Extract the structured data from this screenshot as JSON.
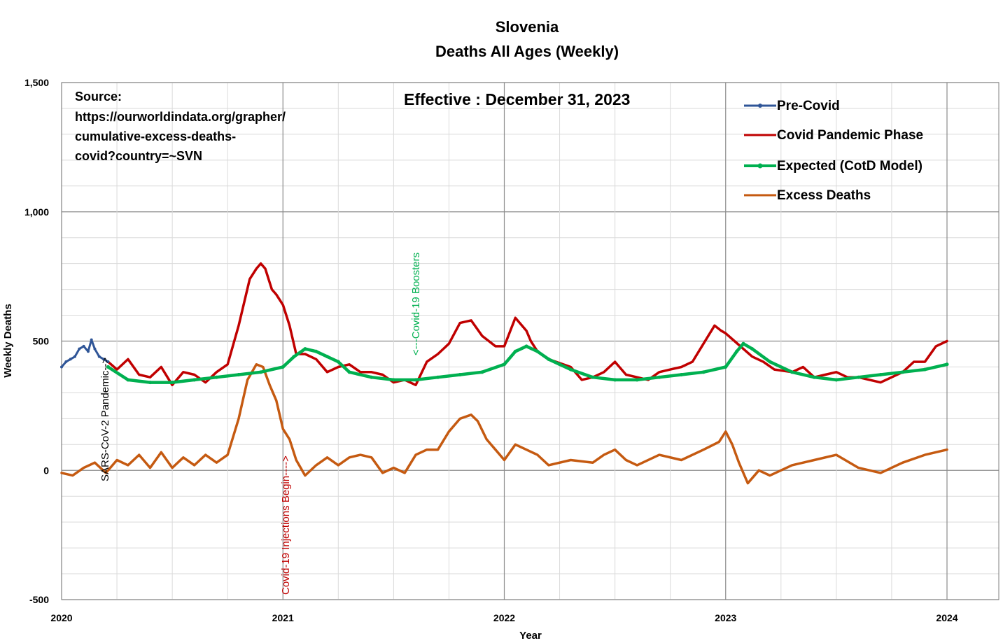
{
  "chart_data": {
    "type": "line",
    "title": "Slovenia",
    "subtitle": "Deaths All Ages (Weekly)",
    "xlabel": "Year",
    "ylabel": "Weekly Deaths",
    "xlim": [
      2020,
      2024.25
    ],
    "ylim": [
      -500,
      1500
    ],
    "x_ticks": [
      "2020",
      "2021",
      "2022",
      "2023",
      "2024"
    ],
    "y_ticks": [
      "-500",
      "0",
      "500",
      "1,000",
      "1,500"
    ],
    "grid": true,
    "legend_position": "top-right",
    "series": [
      {
        "name": "Pre-Covid",
        "color": "#2f5597",
        "x": [
          2020.0,
          2020.02,
          2020.04,
          2020.06,
          2020.08,
          2020.1,
          2020.12,
          2020.135,
          2020.15,
          2020.17,
          2020.19,
          2020.21
        ],
        "y": [
          400,
          420,
          430,
          440,
          470,
          480,
          460,
          505,
          470,
          440,
          430,
          420
        ]
      },
      {
        "name": "Covid Pandemic Phase",
        "color": "#c00000",
        "x": [
          2020.21,
          2020.25,
          2020.3,
          2020.35,
          2020.4,
          2020.45,
          2020.5,
          2020.55,
          2020.6,
          2020.65,
          2020.7,
          2020.75,
          2020.8,
          2020.85,
          2020.88,
          2020.9,
          2020.92,
          2020.95,
          2020.97,
          2021.0,
          2021.03,
          2021.06,
          2021.1,
          2021.15,
          2021.2,
          2021.25,
          2021.3,
          2021.35,
          2021.4,
          2021.45,
          2021.5,
          2021.55,
          2021.6,
          2021.65,
          2021.7,
          2021.75,
          2021.8,
          2021.85,
          2021.9,
          2021.93,
          2021.96,
          2022.0,
          2022.05,
          2022.1,
          2022.12,
          2022.15,
          2022.2,
          2022.3,
          2022.35,
          2022.4,
          2022.45,
          2022.5,
          2022.55,
          2022.6,
          2022.65,
          2022.7,
          2022.75,
          2022.8,
          2022.85,
          2022.9,
          2022.95,
          2022.98,
          2023.0,
          2023.04,
          2023.08,
          2023.12,
          2023.17,
          2023.22,
          2023.3,
          2023.35,
          2023.4,
          2023.45,
          2023.5,
          2023.55,
          2023.6,
          2023.65,
          2023.7,
          2023.75,
          2023.8,
          2023.85,
          2023.9,
          2023.95,
          2024.0
        ],
        "y": [
          420,
          390,
          430,
          370,
          360,
          400,
          330,
          380,
          370,
          340,
          380,
          410,
          560,
          740,
          780,
          800,
          780,
          700,
          680,
          640,
          560,
          450,
          450,
          430,
          380,
          400,
          410,
          380,
          380,
          370,
          340,
          350,
          330,
          420,
          450,
          490,
          570,
          580,
          520,
          500,
          480,
          480,
          590,
          540,
          500,
          460,
          430,
          400,
          350,
          360,
          380,
          420,
          370,
          360,
          350,
          380,
          390,
          400,
          420,
          490,
          560,
          540,
          530,
          500,
          470,
          440,
          420,
          390,
          380,
          400,
          360,
          370,
          380,
          360,
          360,
          350,
          340,
          360,
          380,
          420,
          420,
          480,
          500
        ]
      },
      {
        "name": "Expected (CotD Model)",
        "color": "#00b050",
        "x": [
          2020.21,
          2020.3,
          2020.4,
          2020.5,
          2020.6,
          2020.7,
          2020.8,
          2020.9,
          2021.0,
          2021.05,
          2021.1,
          2021.15,
          2021.2,
          2021.25,
          2021.3,
          2021.4,
          2021.5,
          2021.6,
          2021.7,
          2021.8,
          2021.9,
          2022.0,
          2022.05,
          2022.1,
          2022.15,
          2022.2,
          2022.25,
          2022.3,
          2022.4,
          2022.5,
          2022.6,
          2022.7,
          2022.8,
          2022.9,
          2023.0,
          2023.05,
          2023.08,
          2023.12,
          2023.2,
          2023.3,
          2023.4,
          2023.5,
          2023.6,
          2023.7,
          2023.8,
          2023.9,
          2024.0
        ],
        "y": [
          400,
          350,
          340,
          340,
          350,
          360,
          370,
          380,
          400,
          440,
          470,
          460,
          440,
          420,
          380,
          360,
          350,
          350,
          360,
          370,
          380,
          410,
          460,
          480,
          460,
          430,
          410,
          390,
          360,
          350,
          350,
          360,
          370,
          380,
          400,
          460,
          490,
          470,
          420,
          380,
          360,
          350,
          360,
          370,
          380,
          390,
          410
        ]
      },
      {
        "name": "Excess Deaths",
        "color": "#c55a11",
        "x": [
          2020.0,
          2020.05,
          2020.1,
          2020.15,
          2020.2,
          2020.25,
          2020.3,
          2020.35,
          2020.4,
          2020.45,
          2020.5,
          2020.55,
          2020.6,
          2020.65,
          2020.7,
          2020.75,
          2020.8,
          2020.84,
          2020.88,
          2020.91,
          2020.94,
          2020.97,
          2021.0,
          2021.03,
          2021.06,
          2021.1,
          2021.15,
          2021.2,
          2021.25,
          2021.3,
          2021.35,
          2021.4,
          2021.45,
          2021.5,
          2021.55,
          2021.6,
          2021.65,
          2021.7,
          2021.75,
          2021.8,
          2021.85,
          2021.88,
          2021.92,
          2021.96,
          2022.0,
          2022.05,
          2022.1,
          2022.15,
          2022.2,
          2022.3,
          2022.4,
          2022.45,
          2022.5,
          2022.55,
          2022.6,
          2022.7,
          2022.8,
          2022.9,
          2022.97,
          2023.0,
          2023.03,
          2023.06,
          2023.1,
          2023.15,
          2023.2,
          2023.3,
          2023.4,
          2023.5,
          2023.6,
          2023.7,
          2023.8,
          2023.9,
          2024.0
        ],
        "y": [
          -10,
          -20,
          10,
          30,
          -10,
          40,
          20,
          60,
          10,
          70,
          10,
          50,
          20,
          60,
          30,
          60,
          200,
          350,
          410,
          400,
          330,
          270,
          160,
          120,
          40,
          -20,
          20,
          50,
          20,
          50,
          60,
          50,
          -10,
          10,
          -10,
          60,
          80,
          80,
          150,
          200,
          215,
          190,
          120,
          80,
          40,
          100,
          80,
          60,
          20,
          40,
          30,
          60,
          80,
          40,
          20,
          60,
          40,
          80,
          110,
          150,
          100,
          30,
          -50,
          0,
          -20,
          20,
          40,
          60,
          10,
          -10,
          30,
          60,
          80
        ]
      }
    ],
    "annotations": [
      {
        "text": "SARS-CoV-2 Pandemic-->",
        "x": 2020.19,
        "color": "#000000"
      },
      {
        "text": "Covid-19 Injections Begin---->",
        "x": 2021.0,
        "color": "#c00000"
      },
      {
        "text": "<---Covid-19 Boosters",
        "x": 2021.63,
        "color": "#00b050"
      }
    ],
    "source_lines": [
      "Source:",
      "https://ourworldindata.org/grapher/",
      "cumulative-excess-deaths-",
      "covid?country=~SVN"
    ],
    "effective": "Effective : December 31, 2023"
  }
}
